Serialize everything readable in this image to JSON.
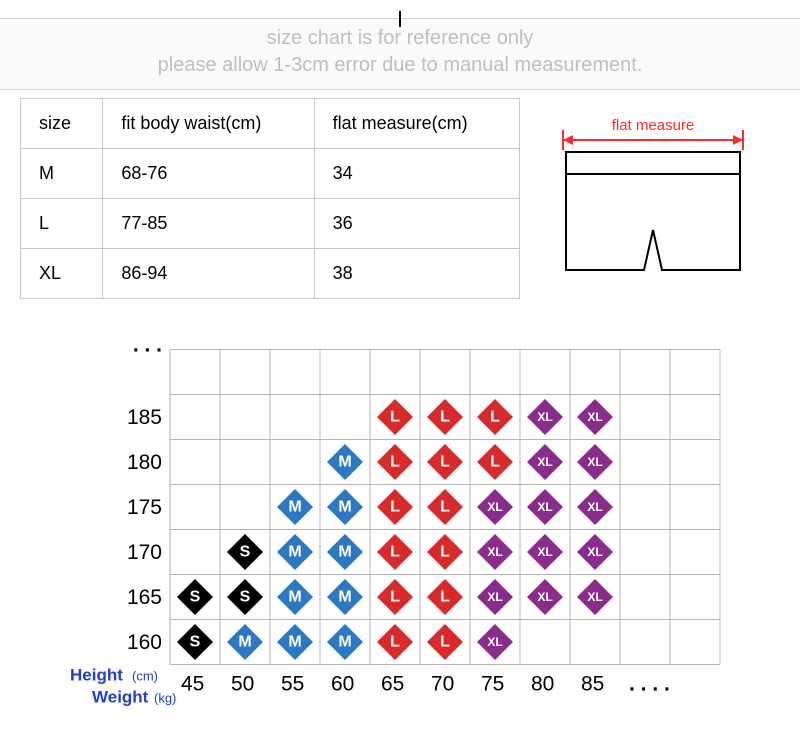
{
  "banner": {
    "line1": "size chart is for reference only",
    "line2": "please allow 1-3cm error due to manual measurement.",
    "text_color": "#bfbfbf",
    "fontsize": 20
  },
  "size_table": {
    "columns": [
      "size",
      "fit body waist(cm)",
      "flat measure(cm)"
    ],
    "rows": [
      [
        "M",
        "68-76",
        "34"
      ],
      [
        "L",
        "77-85",
        "36"
      ],
      [
        "XL",
        "86-94",
        "38"
      ]
    ],
    "border_color": "#c8c8c8",
    "fontsize": 18
  },
  "diagram": {
    "label": "flat measure",
    "label_color": "#ff2a2a",
    "arrow_color": "#ff2a2a",
    "outline_color": "#000000"
  },
  "chart": {
    "type": "scatter-grid",
    "x_label": "Weight",
    "x_unit": "(kg)",
    "y_label": "Height",
    "y_unit": "(cm)",
    "axis_label_color": "#2040d0",
    "grid_color": "#b5b5b5",
    "background_color": "#ffffff",
    "x_ticks": [
      45,
      50,
      55,
      60,
      65,
      70,
      75,
      80,
      85
    ],
    "y_ticks": [
      160,
      165,
      170,
      175,
      180,
      185
    ],
    "x_cell": 50,
    "y_cell": 45,
    "x_origin": 175,
    "y_origin": 333,
    "grid_rows": 7,
    "grid_cols": 11,
    "diamond_half": 18,
    "size_colors": {
      "S": "#000000",
      "M": "#2c78c4",
      "L": "#d82a2a",
      "XL": "#8a2c8c"
    },
    "size_fontsize": {
      "S": 16,
      "M": 16,
      "L": 16,
      "XL": 12
    },
    "points": [
      {
        "w": 45,
        "h": 160,
        "s": "S"
      },
      {
        "w": 50,
        "h": 160,
        "s": "M"
      },
      {
        "w": 55,
        "h": 160,
        "s": "M"
      },
      {
        "w": 60,
        "h": 160,
        "s": "M"
      },
      {
        "w": 65,
        "h": 160,
        "s": "L"
      },
      {
        "w": 70,
        "h": 160,
        "s": "L"
      },
      {
        "w": 75,
        "h": 160,
        "s": "XL"
      },
      {
        "w": 45,
        "h": 165,
        "s": "S"
      },
      {
        "w": 50,
        "h": 165,
        "s": "S"
      },
      {
        "w": 55,
        "h": 165,
        "s": "M"
      },
      {
        "w": 60,
        "h": 165,
        "s": "M"
      },
      {
        "w": 65,
        "h": 165,
        "s": "L"
      },
      {
        "w": 70,
        "h": 165,
        "s": "L"
      },
      {
        "w": 75,
        "h": 165,
        "s": "XL"
      },
      {
        "w": 80,
        "h": 165,
        "s": "XL"
      },
      {
        "w": 85,
        "h": 165,
        "s": "XL"
      },
      {
        "w": 50,
        "h": 170,
        "s": "S"
      },
      {
        "w": 55,
        "h": 170,
        "s": "M"
      },
      {
        "w": 60,
        "h": 170,
        "s": "M"
      },
      {
        "w": 65,
        "h": 170,
        "s": "L"
      },
      {
        "w": 70,
        "h": 170,
        "s": "L"
      },
      {
        "w": 75,
        "h": 170,
        "s": "XL"
      },
      {
        "w": 80,
        "h": 170,
        "s": "XL"
      },
      {
        "w": 85,
        "h": 170,
        "s": "XL"
      },
      {
        "w": 55,
        "h": 175,
        "s": "M"
      },
      {
        "w": 60,
        "h": 175,
        "s": "M"
      },
      {
        "w": 65,
        "h": 175,
        "s": "L"
      },
      {
        "w": 70,
        "h": 175,
        "s": "L"
      },
      {
        "w": 75,
        "h": 175,
        "s": "XL"
      },
      {
        "w": 80,
        "h": 175,
        "s": "XL"
      },
      {
        "w": 85,
        "h": 175,
        "s": "XL"
      },
      {
        "w": 60,
        "h": 180,
        "s": "M"
      },
      {
        "w": 65,
        "h": 180,
        "s": "L"
      },
      {
        "w": 70,
        "h": 180,
        "s": "L"
      },
      {
        "w": 75,
        "h": 180,
        "s": "L"
      },
      {
        "w": 80,
        "h": 180,
        "s": "XL"
      },
      {
        "w": 85,
        "h": 180,
        "s": "XL"
      },
      {
        "w": 65,
        "h": 185,
        "s": "L"
      },
      {
        "w": 70,
        "h": 185,
        "s": "L"
      },
      {
        "w": 75,
        "h": 185,
        "s": "L"
      },
      {
        "w": 80,
        "h": 185,
        "s": "XL"
      },
      {
        "w": 85,
        "h": 185,
        "s": "XL"
      }
    ],
    "x_ellipsis": ". . . .",
    "y_ellipsis": ". . ."
  }
}
